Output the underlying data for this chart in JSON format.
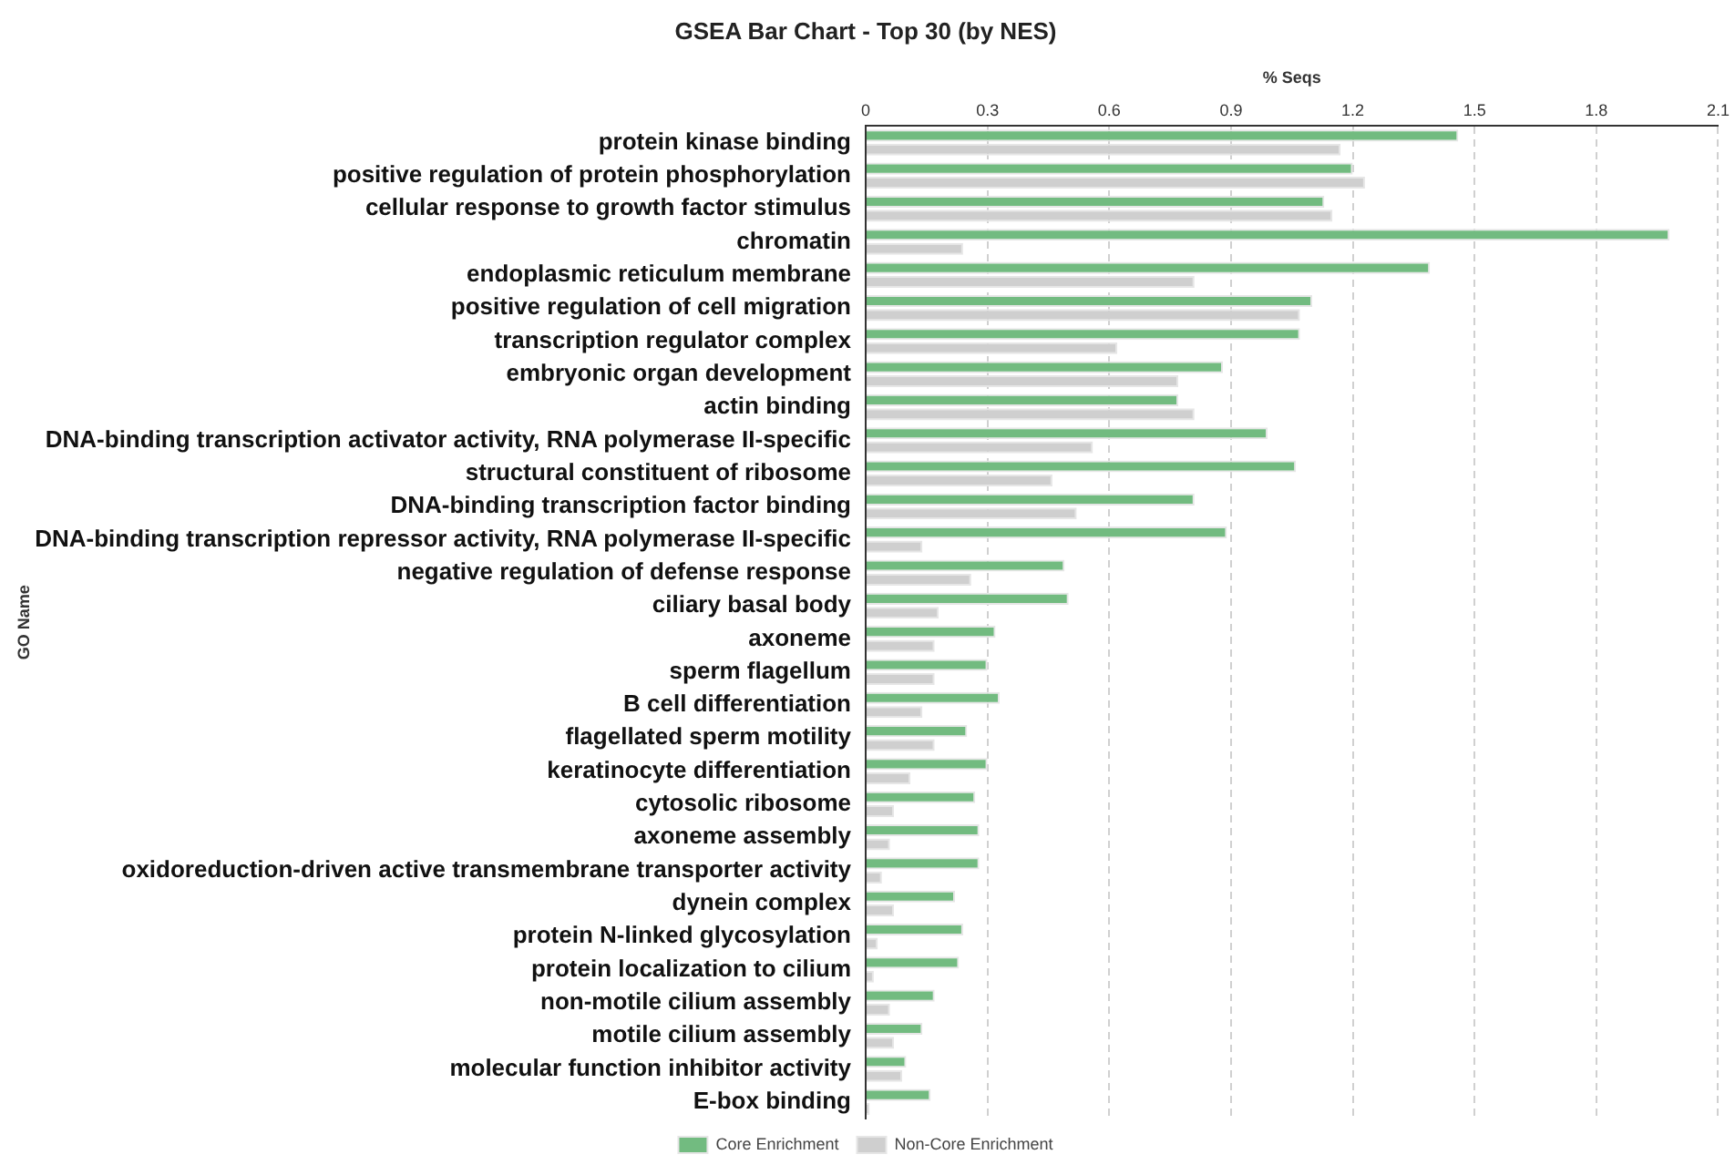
{
  "chart_data": {
    "type": "bar",
    "orientation": "horizontal",
    "title": "GSEA Bar Chart - Top 30 (by NES)",
    "xlabel": "% Seqs",
    "ylabel": "GO Name",
    "categories": [
      "protein kinase binding",
      "positive regulation of protein phosphorylation",
      "cellular response to growth factor stimulus",
      "chromatin",
      "endoplasmic reticulum membrane",
      "positive regulation of cell migration",
      "transcription regulator complex",
      "embryonic organ development",
      "actin binding",
      "DNA-binding transcription activator activity, RNA polymerase II-specific",
      "structural constituent of ribosome",
      "DNA-binding transcription factor binding",
      "DNA-binding transcription repressor activity, RNA polymerase II-specific",
      "negative regulation of defense response",
      "ciliary basal body",
      "axoneme",
      "sperm flagellum",
      "B cell differentiation",
      "flagellated sperm motility",
      "keratinocyte differentiation",
      "cytosolic ribosome",
      "axoneme assembly",
      "oxidoreduction-driven active transmembrane transporter activity",
      "dynein complex",
      "protein N-linked glycosylation",
      "protein localization to cilium",
      "non-motile cilium assembly",
      "motile cilium assembly",
      "molecular function inhibitor activity",
      "E-box binding"
    ],
    "series": [
      {
        "name": "Core Enrichment",
        "color": "#72bb80",
        "values": [
          1.46,
          1.2,
          1.13,
          1.98,
          1.39,
          1.1,
          1.07,
          0.88,
          0.77,
          0.99,
          1.06,
          0.81,
          0.89,
          0.49,
          0.5,
          0.32,
          0.3,
          0.33,
          0.25,
          0.3,
          0.27,
          0.28,
          0.28,
          0.22,
          0.24,
          0.23,
          0.17,
          0.14,
          0.1,
          0.16
        ]
      },
      {
        "name": "Non-Core Enrichment",
        "color": "#cfcfcf",
        "values": [
          1.17,
          1.23,
          1.15,
          0.24,
          0.81,
          1.07,
          0.62,
          0.77,
          0.81,
          0.56,
          0.46,
          0.52,
          0.14,
          0.26,
          0.18,
          0.17,
          0.17,
          0.14,
          0.17,
          0.11,
          0.07,
          0.06,
          0.04,
          0.07,
          0.03,
          0.02,
          0.06,
          0.07,
          0.09,
          0.01
        ]
      }
    ],
    "xlim": [
      0,
      2.1
    ],
    "xticks": [
      0,
      0.3,
      0.6,
      0.9,
      1.2,
      1.5,
      1.8,
      2.1
    ],
    "grid": "x",
    "legend": "bottom"
  }
}
